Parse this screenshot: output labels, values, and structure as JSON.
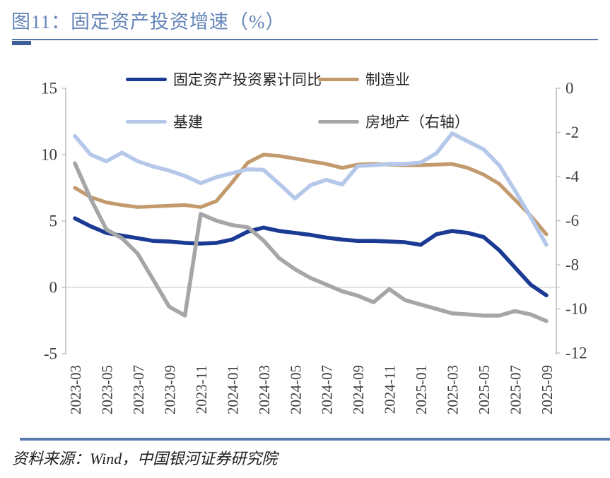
{
  "figure": {
    "title": "图11：固定资产投资增速（%）",
    "source": "资料来源：Wind，中国银河证券研究院"
  },
  "colors": {
    "title_text": "#6484B8",
    "rule_thin": "#5577AC",
    "rule_block": "#3D5F95",
    "rule_bottom": "#5B7BB0",
    "axis_line": "#BFBFBF",
    "gridline": "#D9D9D9",
    "axis_text": "#3F3F3F",
    "legend_text": "#262626"
  },
  "chart_data": {
    "type": "line",
    "title": "固定资产投资增速（%）",
    "grid": "horizontal-zero-line-only",
    "legend_position": "top-inside",
    "x": [
      "2023-03",
      "2023-04",
      "2023-05",
      "2023-06",
      "2023-07",
      "2023-08",
      "2023-09",
      "2023-10",
      "2023-11",
      "2023-12",
      "2024-01",
      "2024-02",
      "2024-03",
      "2024-04",
      "2024-05",
      "2024-06",
      "2024-07",
      "2024-08",
      "2024-09",
      "2024-10",
      "2024-11",
      "2024-12",
      "2025-01",
      "2025-02",
      "2025-03",
      "2025-04",
      "2025-05",
      "2025-06",
      "2025-07",
      "2025-08",
      "2025-09"
    ],
    "x_tick_labels": [
      "2023-03",
      "2023-05",
      "2023-07",
      "2023-09",
      "2023-11",
      "2024-01",
      "2024-03",
      "2024-05",
      "2024-07",
      "2024-09",
      "2024-11",
      "2025-01",
      "2025-03",
      "2025-05",
      "2025-07",
      "2025-09"
    ],
    "left_axis": {
      "ticks": [
        15,
        10,
        5,
        0,
        -5
      ],
      "range": [
        -5,
        15
      ]
    },
    "right_axis": {
      "ticks": [
        0,
        -2,
        -4,
        -6,
        -8,
        -10,
        -12
      ],
      "range": [
        -12,
        0
      ]
    },
    "series": [
      {
        "name": "固定资产投资累计同比",
        "axis": "left",
        "color": "#1A3A94",
        "stroke_width": 5.6,
        "values": [
          5.2,
          4.6,
          4.1,
          3.9,
          3.7,
          3.5,
          3.45,
          3.35,
          3.3,
          3.35,
          3.6,
          4.2,
          4.5,
          4.25,
          4.1,
          3.95,
          3.75,
          3.6,
          3.5,
          3.5,
          3.45,
          3.4,
          3.2,
          4.0,
          4.25,
          4.1,
          3.8,
          2.8,
          1.5,
          0.2,
          -0.6
        ]
      },
      {
        "name": "制造业",
        "axis": "left",
        "color": "#C29A6D",
        "stroke_width": 5.2,
        "values": [
          7.5,
          6.8,
          6.4,
          6.2,
          6.05,
          6.1,
          6.15,
          6.2,
          6.05,
          6.5,
          7.9,
          9.4,
          10.0,
          9.9,
          9.7,
          9.5,
          9.3,
          9.0,
          9.25,
          9.3,
          9.25,
          9.2,
          9.2,
          9.25,
          9.3,
          9.0,
          8.5,
          7.8,
          6.6,
          5.4,
          4.0
        ]
      },
      {
        "name": "基建",
        "axis": "left",
        "color": "#B5C8E9",
        "stroke_width": 5.6,
        "values": [
          11.4,
          10.0,
          9.5,
          10.15,
          9.5,
          9.1,
          8.8,
          8.4,
          7.85,
          8.3,
          8.6,
          8.9,
          8.85,
          7.8,
          6.7,
          7.7,
          8.1,
          7.75,
          9.15,
          9.2,
          9.3,
          9.3,
          9.4,
          10.1,
          11.6,
          11.0,
          10.4,
          9.2,
          7.3,
          5.3,
          3.2
        ]
      },
      {
        "name": "房地产（右轴）",
        "axis": "right",
        "color": "#A6A6A6",
        "stroke_width": 5.6,
        "values": [
          -3.4,
          -5.0,
          -6.4,
          -6.8,
          -7.5,
          -8.7,
          -9.9,
          -10.3,
          -5.7,
          -6.0,
          -6.2,
          -6.3,
          -6.9,
          -7.7,
          -8.2,
          -8.6,
          -8.9,
          -9.2,
          -9.4,
          -9.7,
          -9.1,
          -9.6,
          -9.8,
          -10.0,
          -10.2,
          -10.25,
          -10.3,
          -10.3,
          -10.1,
          -10.25,
          -10.55
        ]
      }
    ]
  }
}
